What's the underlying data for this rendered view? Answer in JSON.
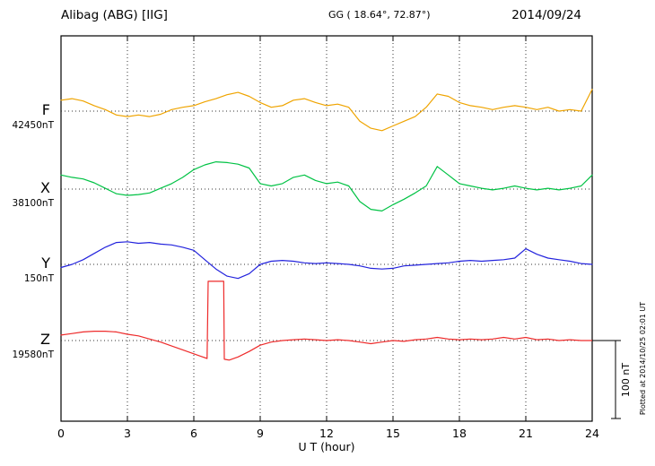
{
  "header": {
    "station_title": "Alibag (ABG)  [IIG]",
    "geo_coords": "GG ( 18.64°,  72.87°)",
    "date": "2014/09/24"
  },
  "axis": {
    "xlabel": "U T (hour)",
    "ticks": [
      "0",
      "3",
      "6",
      "9",
      "12",
      "15",
      "18",
      "21",
      "24"
    ]
  },
  "scalebar": {
    "label": "100 nT",
    "span_nT": 100
  },
  "plotted_at": "Plotted at 2014/10/25 02:01 UT",
  "colors": {
    "F": "#efa400",
    "X": "#00c244",
    "Y": "#2323dd",
    "Z": "#ee2a2a",
    "grid": "#333333",
    "frame": "#000000"
  },
  "chart_data": {
    "type": "line",
    "title": "Alibag (ABG) [IIG] magnetogram",
    "date": "2014/09/24",
    "xlabel": "U T (hour)",
    "x_range": [
      0,
      24
    ],
    "x_tick_step_hours": 3,
    "grid": "dotted vertical gridlines every 3 h; dotted horizontal baseline for each trace",
    "y_scale": "series values are offsets in nT from each trace baseline; right-hand scale bar = 100 nT",
    "series": [
      {
        "name": "F",
        "baseline_label": "42450nT",
        "baseline_nT": 42450,
        "color": "#efa400",
        "x_step": 0.5,
        "values": [
          14,
          16,
          13,
          7,
          2,
          -5,
          -7,
          -5,
          -7,
          -4,
          2,
          5,
          7,
          12,
          16,
          21,
          24,
          19,
          11,
          5,
          7,
          14,
          16,
          11,
          7,
          9,
          5,
          -13,
          -22,
          -25,
          -19,
          -13,
          -7,
          5,
          22,
          19,
          11,
          7,
          5,
          2,
          5,
          7,
          5,
          2,
          5,
          0,
          2,
          0,
          28
        ]
      },
      {
        "name": "X",
        "baseline_label": "38100nT",
        "baseline_nT": 38100,
        "color": "#00c244",
        "x_step": 0.5,
        "values": [
          18,
          15,
          13,
          8,
          1,
          -6,
          -8,
          -7,
          -5,
          1,
          7,
          15,
          25,
          31,
          35,
          34,
          32,
          27,
          7,
          4,
          7,
          15,
          18,
          11,
          7,
          9,
          4,
          -16,
          -26,
          -28,
          -20,
          -13,
          -5,
          4,
          29,
          18,
          7,
          4,
          1,
          -1,
          1,
          4,
          1,
          -1,
          1,
          -1,
          1,
          4,
          18
        ]
      },
      {
        "name": "Y",
        "baseline_label": "150nT",
        "baseline_nT": 150,
        "color": "#2323dd",
        "x_step": 0.5,
        "values": [
          -4,
          0,
          6,
          14,
          22,
          28,
          29,
          27,
          28,
          26,
          25,
          22,
          18,
          6,
          -6,
          -15,
          -18,
          -12,
          0,
          4,
          5,
          4,
          2,
          1,
          2,
          1,
          0,
          -2,
          -5,
          -6,
          -5,
          -2,
          -1,
          0,
          1,
          2,
          4,
          5,
          4,
          5,
          6,
          8,
          20,
          13,
          8,
          6,
          4,
          1,
          0
        ]
      },
      {
        "name": "Z",
        "baseline_label": "19580nT",
        "baseline_nT": 19580,
        "color": "#ee2a2a",
        "points": [
          [
            0,
            7
          ],
          [
            0.5,
            9
          ],
          [
            1,
            11
          ],
          [
            1.5,
            12
          ],
          [
            2,
            12
          ],
          [
            2.5,
            11
          ],
          [
            3,
            8
          ],
          [
            3.5,
            6
          ],
          [
            4,
            2
          ],
          [
            4.5,
            -2
          ],
          [
            5,
            -7
          ],
          [
            5.5,
            -12
          ],
          [
            6,
            -17
          ],
          [
            6.3,
            -20
          ],
          [
            6.6,
            -23
          ],
          [
            6.65,
            76
          ],
          [
            7.35,
            76
          ],
          [
            7.38,
            -24
          ],
          [
            7.6,
            -25
          ],
          [
            8,
            -21
          ],
          [
            8.5,
            -14
          ],
          [
            9,
            -6
          ],
          [
            9.5,
            -2
          ],
          [
            10,
            0
          ],
          [
            10.5,
            1
          ],
          [
            11,
            2
          ],
          [
            11.5,
            1
          ],
          [
            12,
            0
          ],
          [
            12.5,
            1
          ],
          [
            13,
            0
          ],
          [
            13.5,
            -2
          ],
          [
            14,
            -4
          ],
          [
            14.5,
            -2
          ],
          [
            15,
            0
          ],
          [
            15.5,
            -1
          ],
          [
            16,
            1
          ],
          [
            16.5,
            2
          ],
          [
            17,
            4
          ],
          [
            17.5,
            2
          ],
          [
            18,
            1
          ],
          [
            18.5,
            2
          ],
          [
            19,
            1
          ],
          [
            19.5,
            2
          ],
          [
            20,
            4
          ],
          [
            20.5,
            2
          ],
          [
            21,
            4
          ],
          [
            21.5,
            1
          ],
          [
            22,
            2
          ],
          [
            22.5,
            0
          ],
          [
            23,
            1
          ],
          [
            23.5,
            0
          ],
          [
            24,
            0
          ]
        ]
      }
    ]
  }
}
